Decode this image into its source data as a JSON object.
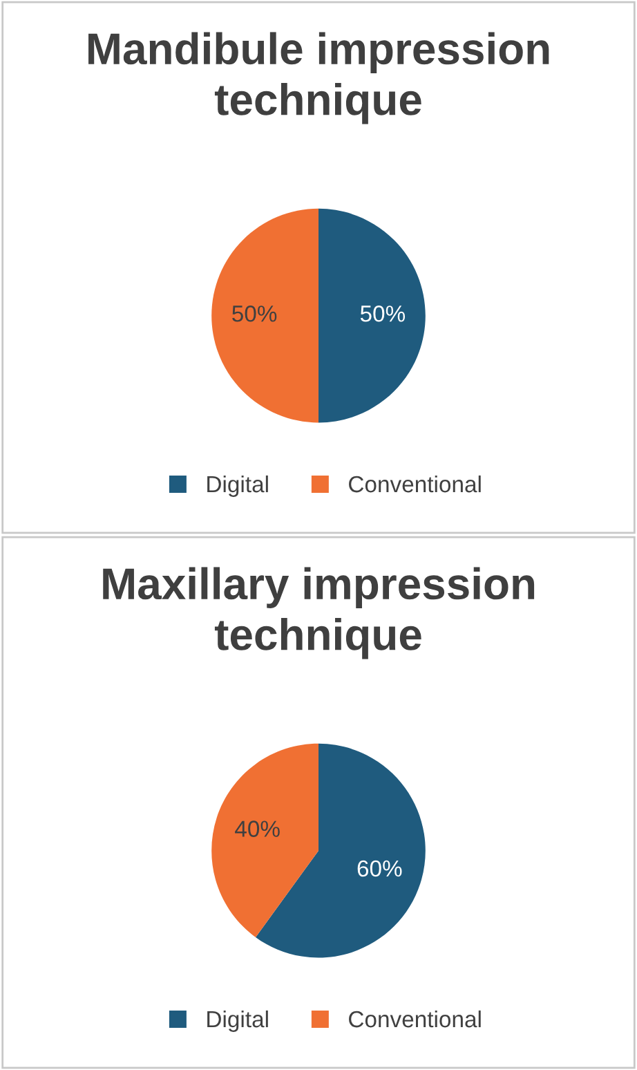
{
  "chart_data": [
    {
      "type": "pie",
      "title": "Mandibule impression technique",
      "categories": [
        "Digital",
        "Conventional"
      ],
      "values": [
        50,
        50
      ],
      "colors": [
        "#1f5b7e",
        "#f07033"
      ],
      "value_labels": [
        "50%",
        "50%"
      ],
      "legend": "bottom"
    },
    {
      "type": "pie",
      "title": "Maxillary impression technique",
      "categories": [
        "Digital",
        "Conventional"
      ],
      "values": [
        60,
        40
      ],
      "colors": [
        "#1f5b7e",
        "#f07033"
      ],
      "value_labels": [
        "60%",
        "40%"
      ],
      "legend": "bottom"
    }
  ]
}
